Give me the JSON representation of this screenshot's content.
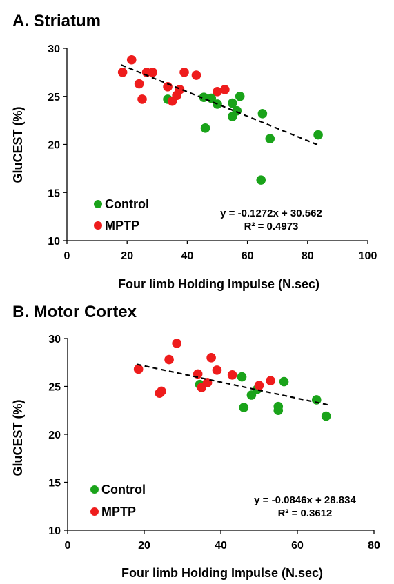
{
  "chart_data": [
    {
      "type": "scatter",
      "title": "A. Striatum",
      "xlabel": "Four limb Holding Impulse (N.sec)",
      "ylabel": "GluCEST (%)",
      "xlim": [
        0,
        100
      ],
      "ylim": [
        10,
        30
      ],
      "xticks": [
        "0",
        "20",
        "40",
        "60",
        "80",
        "100"
      ],
      "yticks": [
        "10",
        "15",
        "20",
        "25",
        "30"
      ],
      "legend_position": "bottom-left",
      "series": [
        {
          "name": "Control",
          "color": "#1aa31a",
          "points": [
            [
              33.5,
              24.7
            ],
            [
              45.5,
              24.9
            ],
            [
              46,
              21.7
            ],
            [
              48,
              24.8
            ],
            [
              50,
              24.2
            ],
            [
              55,
              24.3
            ],
            [
              55,
              22.9
            ],
            [
              56.5,
              23.5
            ],
            [
              57.5,
              25.0
            ],
            [
              65,
              23.2
            ],
            [
              64.5,
              16.3
            ],
            [
              67.5,
              20.6
            ],
            [
              83.5,
              21.0
            ]
          ]
        },
        {
          "name": "MPTP",
          "color": "#ee1c1c",
          "points": [
            [
              18.5,
              27.5
            ],
            [
              21.5,
              28.8
            ],
            [
              24,
              26.3
            ],
            [
              25,
              24.7
            ],
            [
              26.5,
              27.5
            ],
            [
              28.5,
              27.5
            ],
            [
              33.5,
              26.0
            ],
            [
              35,
              24.5
            ],
            [
              36.5,
              25.1
            ],
            [
              37.5,
              25.7
            ],
            [
              39,
              27.5
            ],
            [
              43,
              27.2
            ],
            [
              50,
              25.5
            ],
            [
              52.5,
              25.7
            ]
          ]
        }
      ],
      "trendline": {
        "slope": -0.1272,
        "intercept": 30.562,
        "x_range": [
          18,
          84
        ]
      },
      "annotations": [
        "y = -0.1272x + 30.562",
        "R² = 0.4973"
      ]
    },
    {
      "type": "scatter",
      "title": "B. Motor Cortex",
      "xlabel": "Four limb Holding Impulse (N.sec)",
      "ylabel": "GluCEST (%)",
      "xlim": [
        0,
        80
      ],
      "ylim": [
        10,
        30
      ],
      "xticks": [
        "0",
        "20",
        "40",
        "60",
        "80"
      ],
      "yticks": [
        "10",
        "15",
        "20",
        "25",
        "30"
      ],
      "legend_position": "bottom-left",
      "series": [
        {
          "name": "Control",
          "color": "#1aa31a",
          "points": [
            [
              34.5,
              25.2
            ],
            [
              45.5,
              26.0
            ],
            [
              46,
              22.8
            ],
            [
              48,
              24.1
            ],
            [
              49.5,
              24.7
            ],
            [
              55,
              22.9
            ],
            [
              55,
              22.5
            ],
            [
              56.5,
              25.5
            ],
            [
              65,
              23.6
            ],
            [
              67.5,
              21.9
            ]
          ]
        },
        {
          "name": "MPTP",
          "color": "#ee1c1c",
          "points": [
            [
              18.5,
              26.8
            ],
            [
              24,
              24.3
            ],
            [
              24.5,
              24.5
            ],
            [
              26.5,
              27.8
            ],
            [
              28.5,
              29.5
            ],
            [
              34,
              26.3
            ],
            [
              35,
              24.9
            ],
            [
              36.5,
              25.4
            ],
            [
              37.5,
              28.0
            ],
            [
              39,
              26.7
            ],
            [
              43,
              26.2
            ],
            [
              50,
              25.1
            ],
            [
              53,
              25.6
            ]
          ]
        }
      ],
      "trendline": {
        "slope": -0.0846,
        "intercept": 28.834,
        "x_range": [
          18,
          68
        ]
      },
      "annotations": [
        "y = -0.0846x + 28.834",
        "R² = 0.3612"
      ]
    }
  ]
}
